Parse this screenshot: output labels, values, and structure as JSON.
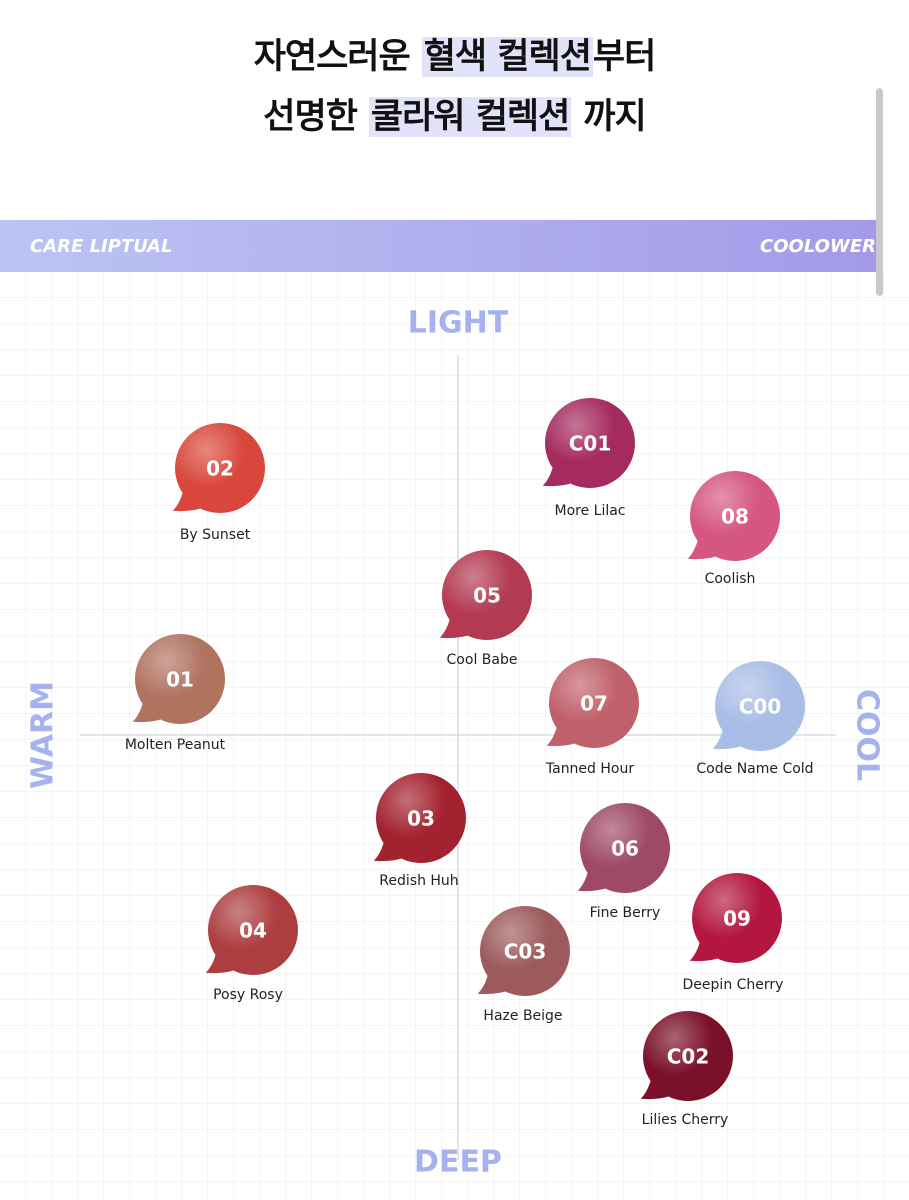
{
  "header": {
    "lines": [
      {
        "before": "자연스러운",
        "highlight": "혈색 컬렉션",
        "after": "부터"
      },
      {
        "before": "선명한",
        "highlight": "쿨라워 컬렉션",
        "after": "까지"
      }
    ]
  },
  "banner": {
    "left": "CARE LIPTUAL",
    "right": "COOLOWER"
  },
  "axes": {
    "top": "LIGHT",
    "bottom": "DEEP",
    "left": "WARM",
    "right": "COOL"
  },
  "items": [
    {
      "code": "02",
      "name": "By Sunset",
      "color": "#d9473c"
    },
    {
      "code": "C01",
      "name": "More Lilac",
      "color": "#a52a5e"
    },
    {
      "code": "08",
      "name": "Coolish",
      "color": "#d5567f"
    },
    {
      "code": "05",
      "name": "Cool Babe",
      "color": "#b33a52"
    },
    {
      "code": "01",
      "name": "Molten Peanut",
      "color": "#b07360"
    },
    {
      "code": "07",
      "name": "Tanned Hour",
      "color": "#c0606a"
    },
    {
      "code": "C00",
      "name": "Code Name Cold",
      "color": "#a9bde6"
    },
    {
      "code": "03",
      "name": "Redish Huh",
      "color": "#a3222f"
    },
    {
      "code": "06",
      "name": "Fine Berry",
      "color": "#9e4a66"
    },
    {
      "code": "04",
      "name": "Posy Rosy",
      "color": "#ad3e3f"
    },
    {
      "code": "09",
      "name": "Deepin Cherry",
      "color": "#b3173f"
    },
    {
      "code": "C03",
      "name": "Haze Beige",
      "color": "#9c5a5c"
    },
    {
      "code": "C02",
      "name": "Lilies Cherry",
      "color": "#7a1029"
    }
  ]
}
